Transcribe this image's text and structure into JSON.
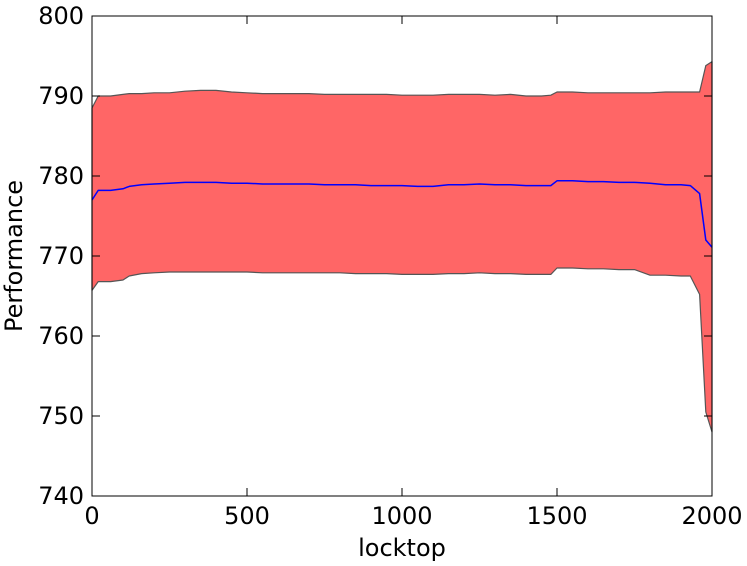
{
  "chart_data": {
    "type": "area",
    "title": "",
    "xlabel": "locktop",
    "ylabel": "Performance",
    "xlim": [
      0,
      2000
    ],
    "ylim": [
      740,
      800
    ],
    "xticks": [
      0,
      500,
      1000,
      1500,
      2000
    ],
    "yticks": [
      740,
      750,
      760,
      770,
      780,
      790,
      800
    ],
    "grid": false,
    "legend": "none",
    "series": [
      {
        "role": "mean",
        "color": "#0000ff",
        "x": [
          0,
          20,
          60,
          100,
          120,
          160,
          200,
          250,
          300,
          350,
          400,
          450,
          500,
          550,
          600,
          650,
          700,
          750,
          800,
          850,
          900,
          950,
          1000,
          1050,
          1100,
          1150,
          1200,
          1250,
          1300,
          1350,
          1400,
          1450,
          1480,
          1500,
          1550,
          1600,
          1650,
          1700,
          1750,
          1800,
          1850,
          1900,
          1930,
          1960,
          1980,
          2000
        ],
        "y": [
          777.0,
          778.2,
          778.2,
          778.4,
          778.7,
          778.9,
          779.0,
          779.1,
          779.2,
          779.2,
          779.2,
          779.1,
          779.1,
          779.0,
          779.0,
          779.0,
          779.0,
          778.9,
          778.9,
          778.9,
          778.8,
          778.8,
          778.8,
          778.7,
          778.7,
          778.9,
          778.9,
          779.0,
          778.9,
          778.9,
          778.8,
          778.8,
          778.8,
          779.4,
          779.4,
          779.3,
          779.3,
          779.2,
          779.2,
          779.1,
          778.9,
          778.9,
          778.8,
          777.8,
          772.0,
          771.1
        ]
      },
      {
        "role": "band",
        "color": "#ff6666",
        "edge_color": "#555555",
        "x": [
          0,
          20,
          60,
          100,
          120,
          160,
          200,
          250,
          300,
          350,
          400,
          450,
          500,
          550,
          600,
          650,
          700,
          750,
          800,
          850,
          900,
          950,
          1000,
          1050,
          1100,
          1150,
          1200,
          1250,
          1300,
          1350,
          1400,
          1450,
          1480,
          1500,
          1550,
          1600,
          1650,
          1700,
          1750,
          1800,
          1850,
          1900,
          1930,
          1960,
          1980,
          2000
        ],
        "upper": [
          788.5,
          790.0,
          790.0,
          790.2,
          790.3,
          790.3,
          790.4,
          790.4,
          790.6,
          790.7,
          790.7,
          790.5,
          790.4,
          790.3,
          790.3,
          790.3,
          790.3,
          790.2,
          790.2,
          790.2,
          790.2,
          790.2,
          790.1,
          790.1,
          790.1,
          790.2,
          790.2,
          790.2,
          790.1,
          790.2,
          790.0,
          790.0,
          790.1,
          790.5,
          790.5,
          790.4,
          790.4,
          790.4,
          790.4,
          790.4,
          790.5,
          790.5,
          790.5,
          790.5,
          793.8,
          794.3
        ],
        "lower": [
          765.7,
          766.8,
          766.8,
          767.0,
          767.5,
          767.8,
          767.9,
          768.0,
          768.0,
          768.0,
          768.0,
          768.0,
          768.0,
          767.9,
          767.9,
          767.9,
          767.9,
          767.9,
          767.9,
          767.8,
          767.8,
          767.8,
          767.7,
          767.7,
          767.7,
          767.8,
          767.8,
          767.9,
          767.8,
          767.8,
          767.7,
          767.7,
          767.7,
          768.5,
          768.5,
          768.4,
          768.4,
          768.3,
          768.3,
          767.6,
          767.6,
          767.5,
          767.5,
          765.2,
          750.5,
          748.0
        ]
      }
    ]
  }
}
